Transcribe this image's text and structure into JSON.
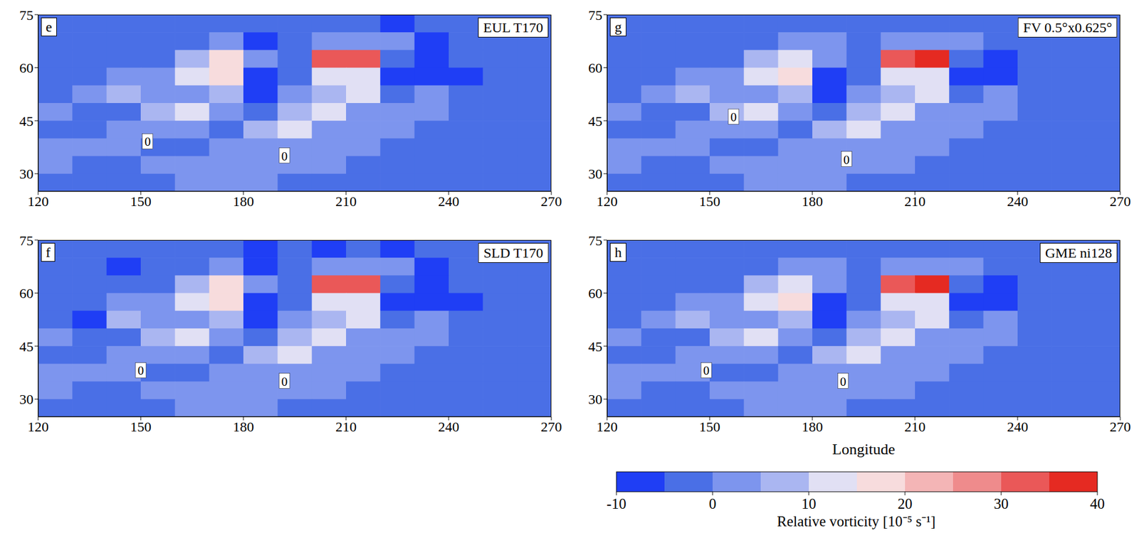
{
  "chart_data": [
    {
      "type": "heatmap",
      "panel": "e",
      "title": "EUL T170",
      "xlim": [
        120,
        270
      ],
      "xticks": [
        120,
        150,
        180,
        210,
        240,
        270
      ],
      "ylim": [
        25,
        75
      ],
      "yticks": [
        30,
        45,
        60,
        75
      ],
      "x": [
        125,
        135,
        145,
        155,
        165,
        175,
        185,
        195,
        205,
        215,
        225,
        235,
        245,
        255,
        265
      ],
      "y": [
        72.5,
        67.5,
        62.5,
        57.5,
        52.5,
        47.5,
        42.5,
        37.5,
        32.5,
        27.5
      ],
      "cells": [
        [
          -3,
          -3,
          -3,
          -3,
          -3,
          -3,
          -3,
          -3,
          -2,
          -2,
          -6,
          -3,
          -3,
          -3,
          -3
        ],
        [
          -3,
          -3,
          -3,
          -3,
          -3,
          1,
          -6,
          -3,
          2,
          3,
          1,
          -7,
          -3,
          -3,
          -3
        ],
        [
          -3,
          -3,
          -3,
          -2,
          8,
          16,
          2,
          -4,
          30,
          33,
          -4,
          -6,
          -3,
          -3,
          -3
        ],
        [
          -3,
          -2,
          2,
          3,
          12,
          18,
          -6,
          -4,
          14,
          12,
          -7,
          -8,
          -6,
          -3,
          -3
        ],
        [
          -1,
          2,
          6,
          2,
          4,
          8,
          -6,
          1,
          6,
          12,
          -4,
          2,
          -3,
          -3,
          -3
        ],
        [
          2,
          -3,
          -3,
          8,
          10,
          1,
          -3,
          6,
          12,
          1,
          2,
          1,
          -3,
          -3,
          -3
        ],
        [
          -3,
          -1,
          2,
          2,
          1,
          -3,
          8,
          10,
          1,
          1,
          2,
          -3,
          -3,
          -3,
          -3
        ],
        [
          2,
          2,
          2,
          -3,
          -3,
          2,
          2,
          1,
          1,
          2,
          -3,
          -3,
          -3,
          -3,
          -3
        ],
        [
          1,
          -3,
          -3,
          1,
          2,
          2,
          2,
          2,
          1,
          -3,
          -3,
          -3,
          -3,
          -3,
          -3
        ],
        [
          -3,
          -3,
          -3,
          -3,
          2,
          2,
          2,
          -3,
          -3,
          -3,
          -3,
          -3,
          -3,
          -3,
          -3
        ]
      ],
      "annotations": [
        {
          "text": "0",
          "x": 152,
          "y": 39
        },
        {
          "text": "0",
          "x": 192,
          "y": 35
        }
      ]
    },
    {
      "type": "heatmap",
      "panel": "g",
      "title": "FV 0.5°x0.625°",
      "xlim": [
        120,
        270
      ],
      "xticks": [
        120,
        150,
        180,
        210,
        240,
        270
      ],
      "ylim": [
        25,
        75
      ],
      "yticks": [
        30,
        45,
        60,
        75
      ],
      "x": [
        125,
        135,
        145,
        155,
        165,
        175,
        185,
        195,
        205,
        215,
        225,
        235,
        245,
        255,
        265
      ],
      "y": [
        72.5,
        67.5,
        62.5,
        57.5,
        52.5,
        47.5,
        42.5,
        37.5,
        32.5,
        27.5
      ],
      "cells": [
        [
          -3,
          -3,
          -3,
          -3,
          -3,
          -3,
          -3,
          -3,
          -2,
          -2,
          -3,
          -3,
          -3,
          -3,
          -3
        ],
        [
          -3,
          -3,
          -3,
          -3,
          -3,
          1,
          1,
          -3,
          2,
          3,
          1,
          -2,
          -3,
          -3,
          -3
        ],
        [
          -3,
          -3,
          -3,
          -2,
          6,
          12,
          2,
          -4,
          30,
          36,
          -4,
          -6,
          -3,
          -3,
          -3
        ],
        [
          -3,
          -2,
          2,
          3,
          12,
          18,
          -6,
          -4,
          14,
          12,
          -7,
          -6,
          -3,
          -3,
          -3
        ],
        [
          -1,
          2,
          6,
          2,
          4,
          8,
          -6,
          1,
          6,
          12,
          -4,
          2,
          -3,
          -3,
          -3
        ],
        [
          2,
          -3,
          -3,
          8,
          10,
          1,
          -3,
          6,
          12,
          1,
          2,
          1,
          -3,
          -3,
          -3
        ],
        [
          -3,
          -1,
          2,
          2,
          1,
          -3,
          8,
          10,
          1,
          1,
          2,
          -3,
          -3,
          -3,
          -3
        ],
        [
          2,
          2,
          2,
          -3,
          -3,
          2,
          2,
          1,
          1,
          2,
          -3,
          -3,
          -3,
          -3,
          -3
        ],
        [
          1,
          -3,
          -3,
          1,
          2,
          2,
          2,
          2,
          1,
          -3,
          -3,
          -3,
          -3,
          -3,
          -3
        ],
        [
          -3,
          -3,
          -3,
          -3,
          2,
          2,
          2,
          -3,
          -3,
          -3,
          -3,
          -3,
          -3,
          -3,
          -3
        ]
      ],
      "annotations": [
        {
          "text": "0",
          "x": 157,
          "y": 46
        },
        {
          "text": "0",
          "x": 190,
          "y": 34
        }
      ]
    },
    {
      "type": "heatmap",
      "panel": "f",
      "title": "SLD T170",
      "xlim": [
        120,
        270
      ],
      "xticks": [
        120,
        150,
        180,
        210,
        240,
        270
      ],
      "ylim": [
        25,
        75
      ],
      "yticks": [
        30,
        45,
        60,
        75
      ],
      "x": [
        125,
        135,
        145,
        155,
        165,
        175,
        185,
        195,
        205,
        215,
        225,
        235,
        245,
        255,
        265
      ],
      "y": [
        72.5,
        67.5,
        62.5,
        57.5,
        52.5,
        47.5,
        42.5,
        37.5,
        32.5,
        27.5
      ],
      "cells": [
        [
          -3,
          -3,
          -3,
          -3,
          -3,
          -3,
          -6,
          -3,
          -6,
          -2,
          -6,
          -3,
          -3,
          -3,
          -3
        ],
        [
          -3,
          -3,
          -6,
          -3,
          -3,
          1,
          -6,
          -3,
          2,
          3,
          1,
          -7,
          -3,
          -3,
          -3
        ],
        [
          -3,
          -3,
          -3,
          -2,
          8,
          16,
          2,
          -4,
          30,
          33,
          -4,
          -6,
          -3,
          -3,
          -3
        ],
        [
          -3,
          -2,
          2,
          3,
          12,
          18,
          -6,
          -4,
          14,
          12,
          -7,
          -8,
          -6,
          -3,
          -3
        ],
        [
          -1,
          -6,
          6,
          2,
          4,
          8,
          -6,
          1,
          6,
          12,
          -4,
          2,
          -3,
          -3,
          -3
        ],
        [
          2,
          -3,
          -3,
          8,
          10,
          1,
          -3,
          6,
          12,
          1,
          2,
          1,
          -3,
          -3,
          -3
        ],
        [
          -3,
          -1,
          2,
          2,
          1,
          -3,
          8,
          10,
          1,
          1,
          2,
          -3,
          -3,
          -3,
          -3
        ],
        [
          2,
          2,
          2,
          -3,
          -3,
          2,
          2,
          1,
          1,
          2,
          -3,
          -3,
          -3,
          -3,
          -3
        ],
        [
          1,
          -3,
          -3,
          1,
          2,
          2,
          2,
          2,
          1,
          -3,
          -3,
          -3,
          -3,
          -3,
          -3
        ],
        [
          -3,
          -3,
          -3,
          -3,
          2,
          2,
          2,
          -3,
          -3,
          -3,
          -3,
          -3,
          -3,
          -3,
          -3
        ]
      ],
      "annotations": [
        {
          "text": "0",
          "x": 150,
          "y": 38
        },
        {
          "text": "0",
          "x": 192,
          "y": 35
        }
      ]
    },
    {
      "type": "heatmap",
      "panel": "h",
      "title": "GME ni128",
      "xlabel": "Longitude",
      "xlim": [
        120,
        270
      ],
      "xticks": [
        120,
        150,
        180,
        210,
        240,
        270
      ],
      "ylim": [
        25,
        75
      ],
      "yticks": [
        30,
        45,
        60,
        75
      ],
      "x": [
        125,
        135,
        145,
        155,
        165,
        175,
        185,
        195,
        205,
        215,
        225,
        235,
        245,
        255,
        265
      ],
      "y": [
        72.5,
        67.5,
        62.5,
        57.5,
        52.5,
        47.5,
        42.5,
        37.5,
        32.5,
        27.5
      ],
      "cells": [
        [
          -3,
          -3,
          -3,
          -3,
          -3,
          -3,
          -3,
          -3,
          -2,
          -2,
          -3,
          -3,
          -3,
          -3,
          -3
        ],
        [
          -3,
          -3,
          -3,
          -3,
          -3,
          1,
          1,
          -3,
          2,
          3,
          1,
          -2,
          -3,
          -3,
          -3
        ],
        [
          -3,
          -3,
          -3,
          -2,
          6,
          14,
          2,
          -4,
          30,
          38,
          -4,
          -6,
          -3,
          -3,
          -3
        ],
        [
          -3,
          -2,
          2,
          3,
          12,
          18,
          -6,
          -4,
          14,
          12,
          -7,
          -8,
          -3,
          -3,
          -3
        ],
        [
          -1,
          2,
          6,
          2,
          4,
          8,
          -6,
          1,
          6,
          12,
          -4,
          2,
          -3,
          -3,
          -3
        ],
        [
          2,
          -3,
          -3,
          8,
          10,
          1,
          -3,
          6,
          12,
          1,
          2,
          1,
          -3,
          -3,
          -3
        ],
        [
          -3,
          -1,
          2,
          2,
          1,
          -3,
          8,
          10,
          1,
          1,
          2,
          -3,
          -3,
          -3,
          -3
        ],
        [
          2,
          2,
          2,
          -3,
          -3,
          2,
          2,
          1,
          1,
          2,
          -3,
          -3,
          -3,
          -3,
          -3
        ],
        [
          1,
          -3,
          -3,
          1,
          2,
          2,
          2,
          2,
          1,
          -3,
          -3,
          -3,
          -3,
          -3,
          -3
        ],
        [
          -3,
          -3,
          -3,
          -3,
          2,
          2,
          2,
          -3,
          -3,
          -3,
          -3,
          -3,
          -3,
          -3,
          -3
        ]
      ],
      "annotations": [
        {
          "text": "0",
          "x": 149,
          "y": 38
        },
        {
          "text": "0",
          "x": 189,
          "y": 35
        }
      ]
    }
  ],
  "colorbar": {
    "label": "Relative vorticity [10⁻⁵ s⁻¹]",
    "range": [
      -10,
      40
    ],
    "ticks": [
      -10,
      0,
      10,
      20,
      30,
      40
    ],
    "levels": [
      -10,
      -5,
      0,
      5,
      10,
      15,
      20,
      25,
      30,
      35,
      40
    ],
    "colors": [
      "#1f3ef5",
      "#4a6fe6",
      "#7d95ee",
      "#aab6f1",
      "#e1e0f4",
      "#f7dcdd",
      "#f4b5b6",
      "#ef8b8c",
      "#ea5858",
      "#e52a22"
    ]
  }
}
